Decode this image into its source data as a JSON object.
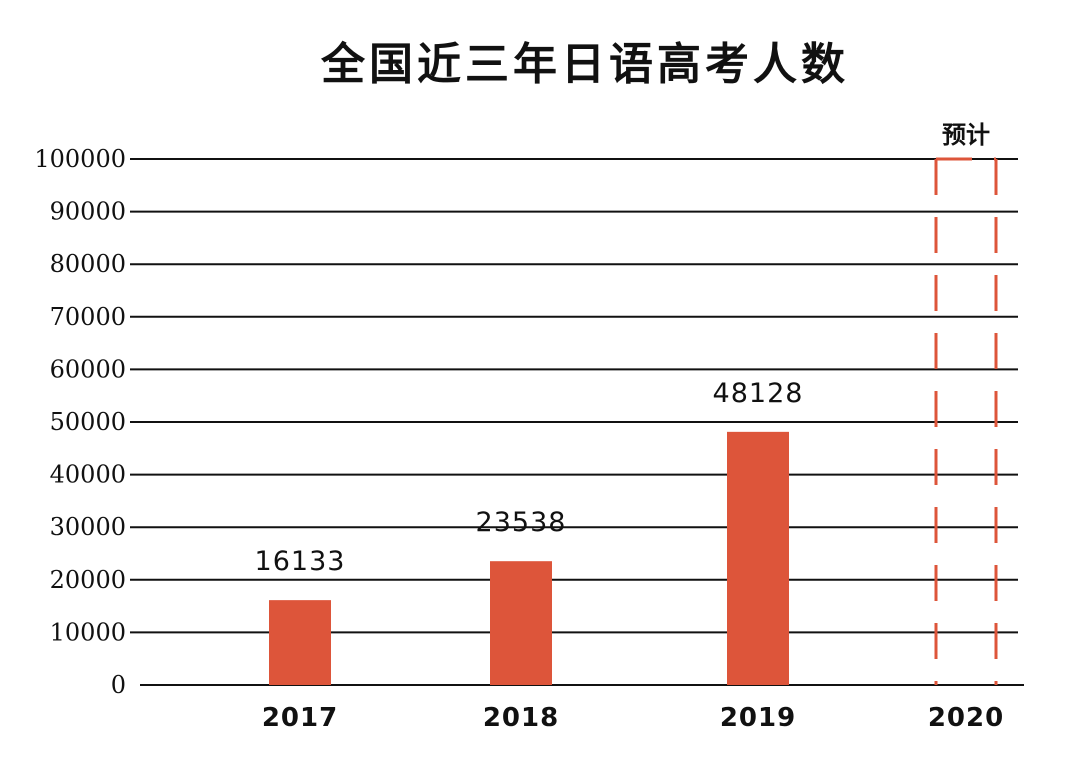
{
  "chart_data": {
    "type": "bar",
    "title": "全国近三年日语高考人数",
    "categories": [
      "2017",
      "2018",
      "2019",
      "2020"
    ],
    "values": [
      16133,
      23538,
      48128,
      null
    ],
    "data_labels": [
      "16133",
      "23538",
      "48128",
      ""
    ],
    "ylim": [
      0,
      100000
    ],
    "yticks": [
      0,
      10000,
      20000,
      30000,
      40000,
      50000,
      60000,
      70000,
      80000,
      90000,
      100000
    ],
    "ytick_labels": [
      "0",
      "10000",
      "20000",
      "30000",
      "40000",
      "50000",
      "60000",
      "70000",
      "80000",
      "90000",
      "100000"
    ],
    "grid": true,
    "bar_color": "#dd553a",
    "projection": {
      "category": "2020",
      "label": "预计",
      "style": "dashed-outline",
      "color": "#dd553a"
    }
  }
}
